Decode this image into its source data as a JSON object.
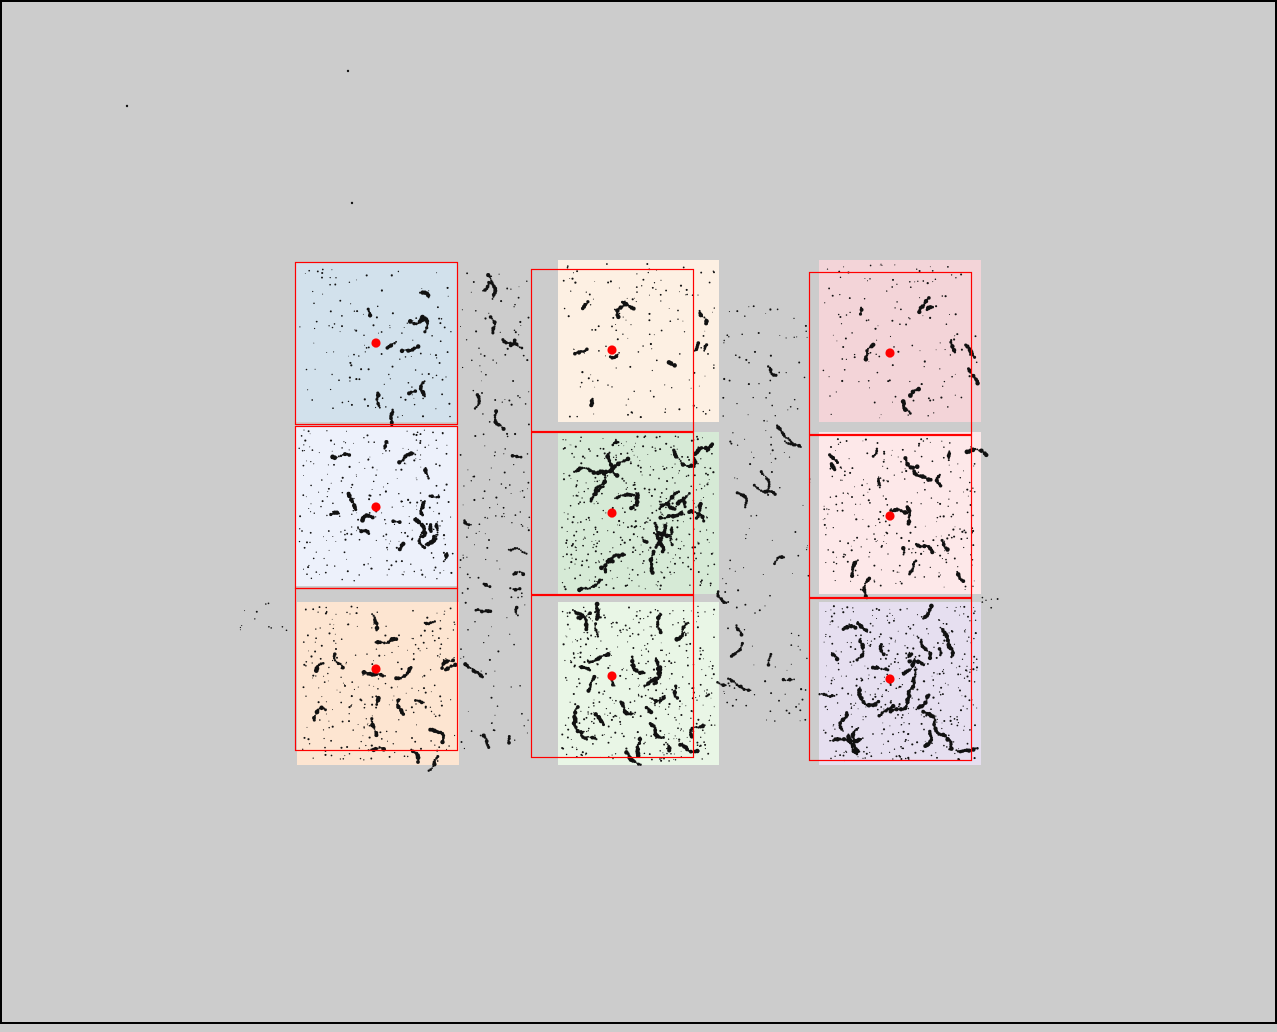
{
  "scene": {
    "background_color": "#cccccc",
    "frame_color": "#000000",
    "tile_border_color": "#ff0000",
    "marker_color": "#ff0000",
    "speckle_color": "#111111",
    "layout": {
      "columns": 3,
      "rows": 3
    }
  },
  "tiles": [
    {
      "id": "r0c0",
      "fill": "#d2e1ec",
      "density": "low"
    },
    {
      "id": "r1c0",
      "fill": "#edf1fb",
      "density": "medium"
    },
    {
      "id": "r2c0",
      "fill": "#fde5d1",
      "density": "medium"
    },
    {
      "id": "r0c1",
      "fill": "#fdf0e3",
      "density": "low"
    },
    {
      "id": "r1c1",
      "fill": "#d6ead6",
      "density": "high"
    },
    {
      "id": "r2c1",
      "fill": "#e9f6e6",
      "density": "high"
    },
    {
      "id": "r0c2",
      "fill": "#f3d4d8",
      "density": "low"
    },
    {
      "id": "r1c2",
      "fill": "#fde8e9",
      "density": "medium"
    },
    {
      "id": "r2c2",
      "fill": "#e6dff0",
      "density": "high"
    }
  ]
}
